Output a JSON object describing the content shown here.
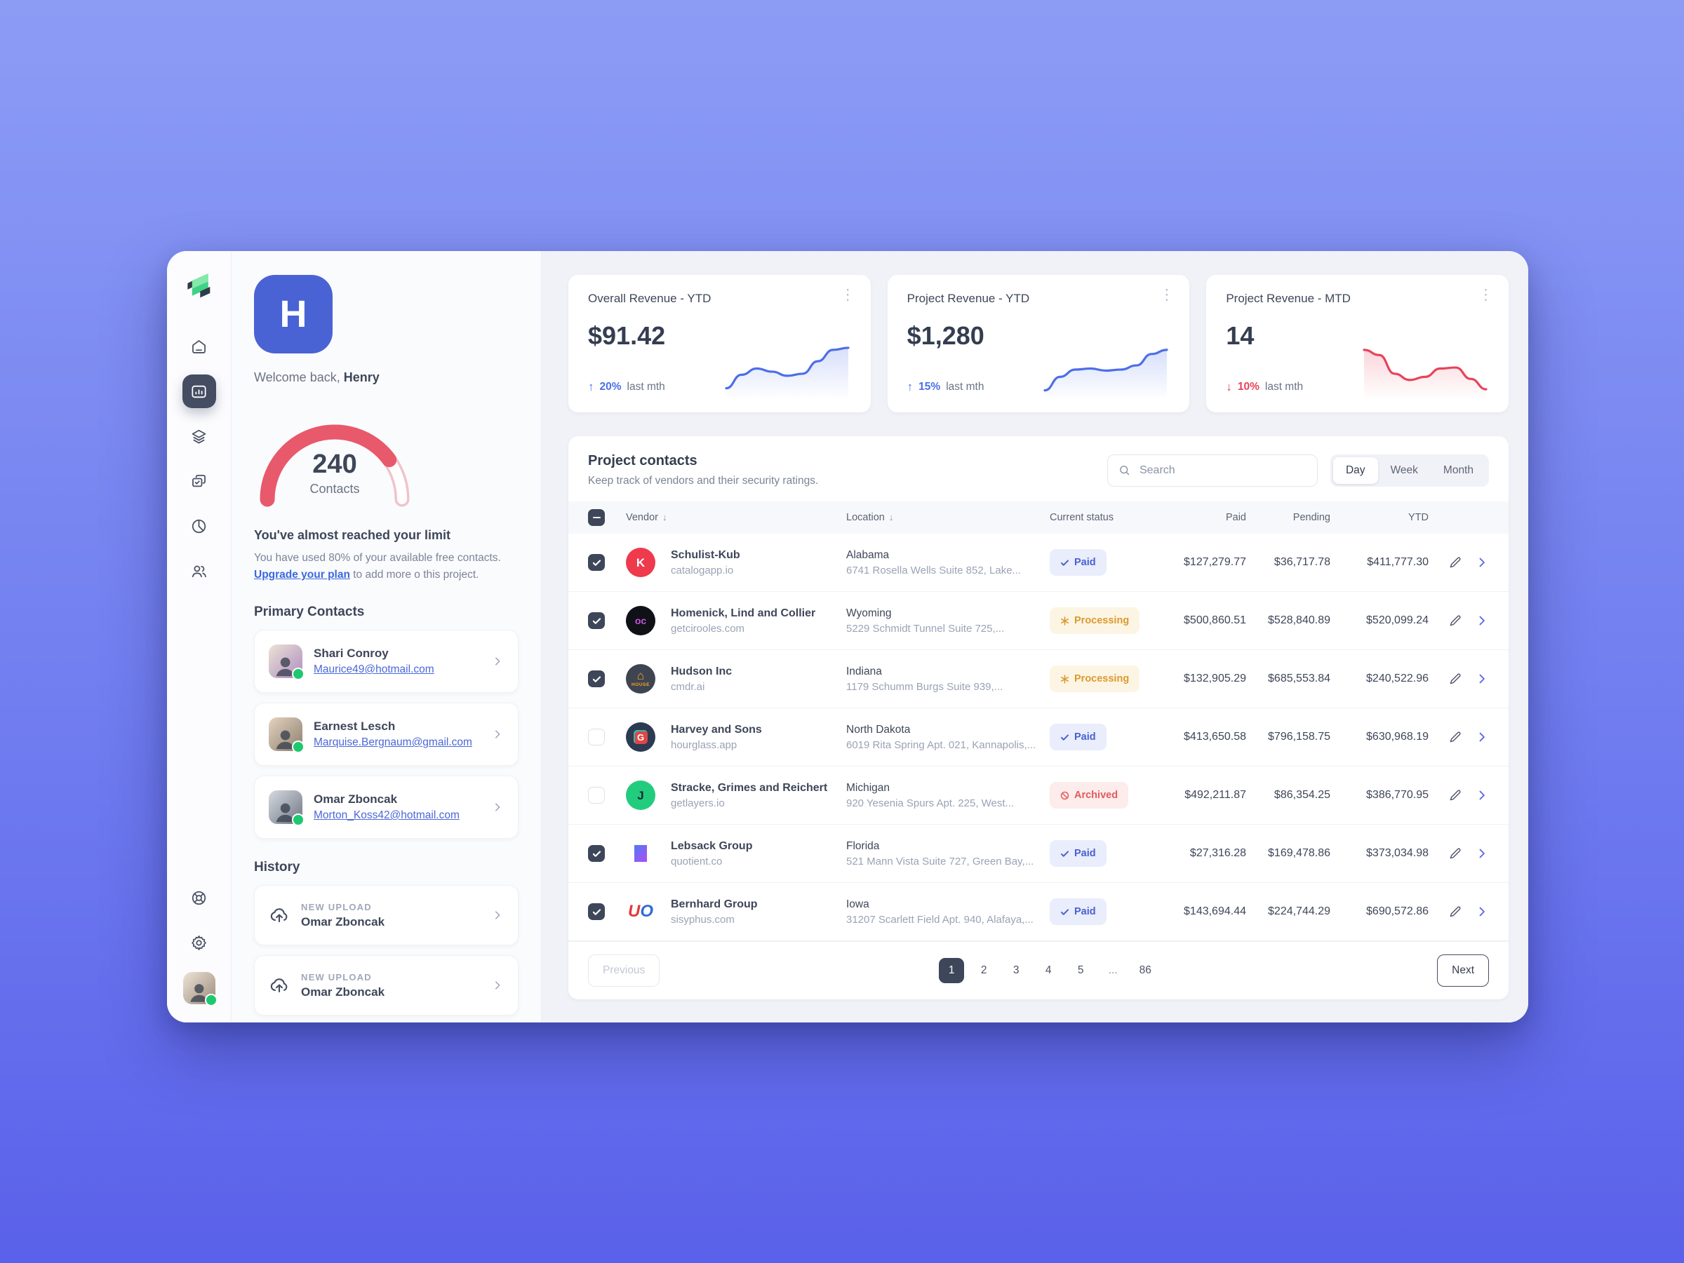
{
  "profile": {
    "initial": "H",
    "welcome_prefix": "Welcome back,",
    "name": "Henry"
  },
  "sidebar": {
    "nav": [
      {
        "name": "home"
      },
      {
        "name": "analytics"
      },
      {
        "name": "layers"
      },
      {
        "name": "tasks"
      },
      {
        "name": "reports"
      },
      {
        "name": "contacts"
      }
    ],
    "active": "analytics",
    "tools": [
      {
        "name": "help"
      },
      {
        "name": "settings"
      }
    ]
  },
  "gauge": {
    "value": "240",
    "label": "Contacts",
    "percent": 80,
    "fill_color": "#E8596B"
  },
  "limit": {
    "title": "You've almost reached your limit",
    "body": "You have used 80% of your available free contacts.",
    "link_label": "Upgrade your plan",
    "body_after": "to add more o this project."
  },
  "primary_contacts": {
    "title": "Primary Contacts",
    "items": [
      {
        "name": "Shari Conroy",
        "email": "Maurice49@hotmail.com",
        "avatar": [
          "#EBE3D6",
          "#B08CC0"
        ]
      },
      {
        "name": "Earnest Lesch",
        "email": "Marquise.Bergnaum@gmail.com",
        "avatar": [
          "#E3D3BF",
          "#8E7F6E"
        ]
      },
      {
        "name": "Omar Zboncak",
        "email": "Morton_Koss42@hotmail.com",
        "avatar": [
          "#D6DAE0",
          "#6E7682"
        ]
      }
    ]
  },
  "history": {
    "title": "History",
    "items": [
      {
        "label": "NEW UPLOAD",
        "name": "Omar Zboncak"
      },
      {
        "label": "NEW UPLOAD",
        "name": "Omar Zboncak"
      }
    ]
  },
  "stats": [
    {
      "title": "Overall Revenue - YTD",
      "value": "$91.42",
      "delta": "20%",
      "trend": "up",
      "note": "last mth",
      "color": "#4C6FE8",
      "chart": {
        "type": "area",
        "x": [
          0,
          1,
          2,
          3,
          4,
          5,
          6,
          7,
          8
        ],
        "values": [
          14,
          40,
          52,
          46,
          38,
          42,
          66,
          88,
          92
        ]
      }
    },
    {
      "title": "Project Revenue - YTD",
      "value": "$1,280",
      "delta": "15%",
      "trend": "up",
      "note": "last mth",
      "color": "#4C6FE8",
      "chart": {
        "type": "area",
        "x": [
          0,
          1,
          2,
          3,
          4,
          5,
          6,
          7,
          8
        ],
        "values": [
          10,
          36,
          50,
          52,
          48,
          50,
          58,
          80,
          88
        ]
      }
    },
    {
      "title": "Project Revenue - MTD",
      "value": "14",
      "delta": "10%",
      "trend": "down",
      "note": "last mth",
      "color": "#E8435A",
      "chart": {
        "type": "area",
        "x": [
          0,
          1,
          2,
          3,
          4,
          5,
          6,
          7,
          8
        ],
        "values": [
          88,
          78,
          42,
          30,
          36,
          52,
          54,
          32,
          12
        ]
      }
    }
  ],
  "table": {
    "title": "Project contacts",
    "subtitle": "Keep track of vendors and their security ratings.",
    "search_placeholder": "Search",
    "range_options": [
      "Day",
      "Week",
      "Month"
    ],
    "range_active": "Day",
    "columns": [
      "Vendor",
      "Location",
      "Current status",
      "Paid",
      "Pending",
      "YTD"
    ],
    "rows": [
      {
        "checked": true,
        "vendor": "Schulist-Kub",
        "domain": "catalogapp.io",
        "state": "Alabama",
        "address": "6741 Rosella Wells Suite 852, Lake...",
        "status": {
          "type": "paid",
          "label": "Paid"
        },
        "paid": "$127,279.77",
        "pending": "$36,717.78",
        "ytd": "$411,777.30",
        "logo": {
          "shape": "circle",
          "bg": "#EE3A4C",
          "glyph": "K",
          "color": "#FFFFFF"
        }
      },
      {
        "checked": true,
        "vendor": "Homenick, Lind and Collier",
        "domain": "getcirooles.com",
        "state": "Wyoming",
        "address": "5229 Schmidt Tunnel Suite 725,...",
        "status": {
          "type": "processing",
          "label": "Processing"
        },
        "paid": "$500,860.51",
        "pending": "$528,840.89",
        "ytd": "$520,099.24",
        "logo": {
          "shape": "circle",
          "bg": "#101116",
          "glyph": "oc",
          "color": "#C455E0",
          "size": "14"
        }
      },
      {
        "checked": true,
        "vendor": "Hudson Inc",
        "domain": "cmdr.ai",
        "state": "Indiana",
        "address": "1179 Schumm Burgs Suite 939,...",
        "status": {
          "type": "processing",
          "label": "Processing"
        },
        "paid": "$132,905.29",
        "pending": "$685,553.84",
        "ytd": "$240,522.96",
        "logo": {
          "shape": "circle",
          "bg": "#3E4551",
          "glyph": "⌂",
          "color": "#F5A623",
          "sub": "HOUSE"
        }
      },
      {
        "checked": false,
        "vendor": "Harvey and Sons",
        "domain": "hourglass.app",
        "state": "North Dakota",
        "address": "6019 Rita Spring Apt. 021, Kannapolis,...",
        "status": {
          "type": "paid",
          "label": "Paid"
        },
        "paid": "$413,650.58",
        "pending": "$796,158.75",
        "ytd": "$630,968.19",
        "logo": {
          "shape": "circle",
          "bg": "#2C3A52",
          "glyph": "G",
          "color": "#FFFFFF",
          "chip": "#E04545"
        }
      },
      {
        "checked": false,
        "vendor": "Stracke, Grimes and Reichert",
        "domain": "getlayers.io",
        "state": "Michigan",
        "address": "920 Yesenia Spurs Apt. 225, West...",
        "status": {
          "type": "archived",
          "label": "Archived"
        },
        "paid": "$492,211.87",
        "pending": "$86,354.25",
        "ytd": "$386,770.95",
        "logo": {
          "shape": "circle",
          "bg": "#21CD7D",
          "glyph": "J",
          "color": "#17263B"
        }
      },
      {
        "checked": true,
        "vendor": "Lebsack Group",
        "domain": "quotient.co",
        "state": "Florida",
        "address": "521 Mann Vista Suite 727, Green Bay,...",
        "status": {
          "type": "paid",
          "label": "Paid"
        },
        "paid": "$27,316.28",
        "pending": "$169,478.86",
        "ytd": "$373,034.98",
        "logo": {
          "shape": "plain",
          "glyph": "N",
          "gradient": [
            "#4F7BF7",
            "#B14BF4"
          ]
        }
      },
      {
        "checked": true,
        "vendor": "Bernhard Group",
        "domain": "sisyphus.com",
        "state": "Iowa",
        "address": "31207 Scarlett Field Apt. 940, Alafaya,...",
        "status": {
          "type": "paid",
          "label": "Paid"
        },
        "paid": "$143,694.44",
        "pending": "$224,744.29",
        "ytd": "$690,572.86",
        "logo": {
          "shape": "plain",
          "glyph": "U",
          "color": "#E03A3A",
          "glyph2": "O",
          "color2": "#2F6BD8",
          "italic": true
        }
      }
    ],
    "pagination": {
      "previous": "Previous",
      "next": "Next",
      "pages": [
        "1",
        "2",
        "3",
        "4",
        "5",
        "...",
        "86"
      ],
      "active": "1"
    }
  }
}
